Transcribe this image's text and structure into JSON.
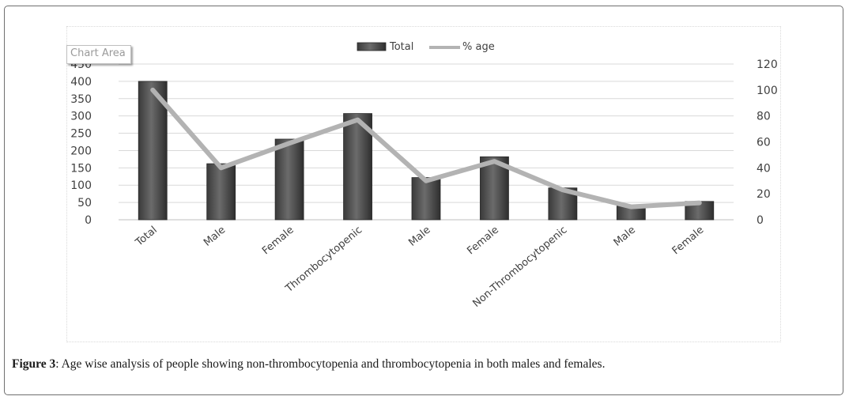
{
  "caption": {
    "label": "Figure 3",
    "text": ": Age wise analysis of people showing non-thrombocytopenia and thrombocytopenia in both males and females."
  },
  "tooltip": {
    "text": "Chart Area"
  },
  "chart_data": {
    "type": "bar",
    "categories": [
      "Total",
      "Male",
      "Female",
      "Thrombocytopenic",
      "Male",
      "Female",
      "Non-Thrombocytopenic",
      "Male",
      "Female"
    ],
    "series": [
      {
        "name": "Total",
        "type": "bar",
        "axis": "left",
        "values": [
          400,
          162,
          233,
          307,
          122,
          182,
          92,
          40,
          53
        ]
      },
      {
        "name": "% age",
        "type": "line",
        "axis": "right",
        "values": [
          100,
          40,
          59,
          77,
          30,
          45,
          23,
          10,
          13
        ]
      }
    ],
    "y_left": {
      "min": 0,
      "max": 450,
      "ticks": [
        0,
        50,
        100,
        150,
        200,
        250,
        300,
        350,
        400,
        450
      ]
    },
    "y_right": {
      "min": 0,
      "max": 120,
      "ticks": [
        0,
        20,
        40,
        60,
        80,
        100,
        120
      ]
    },
    "legend_position": "top-center",
    "grid": true,
    "colors": {
      "bar": "#4a4a4a",
      "bar_light": "#7a7a7a",
      "line": "#b3b3b3",
      "axis_text": "#404040",
      "grid": "#d9d9d9"
    }
  }
}
